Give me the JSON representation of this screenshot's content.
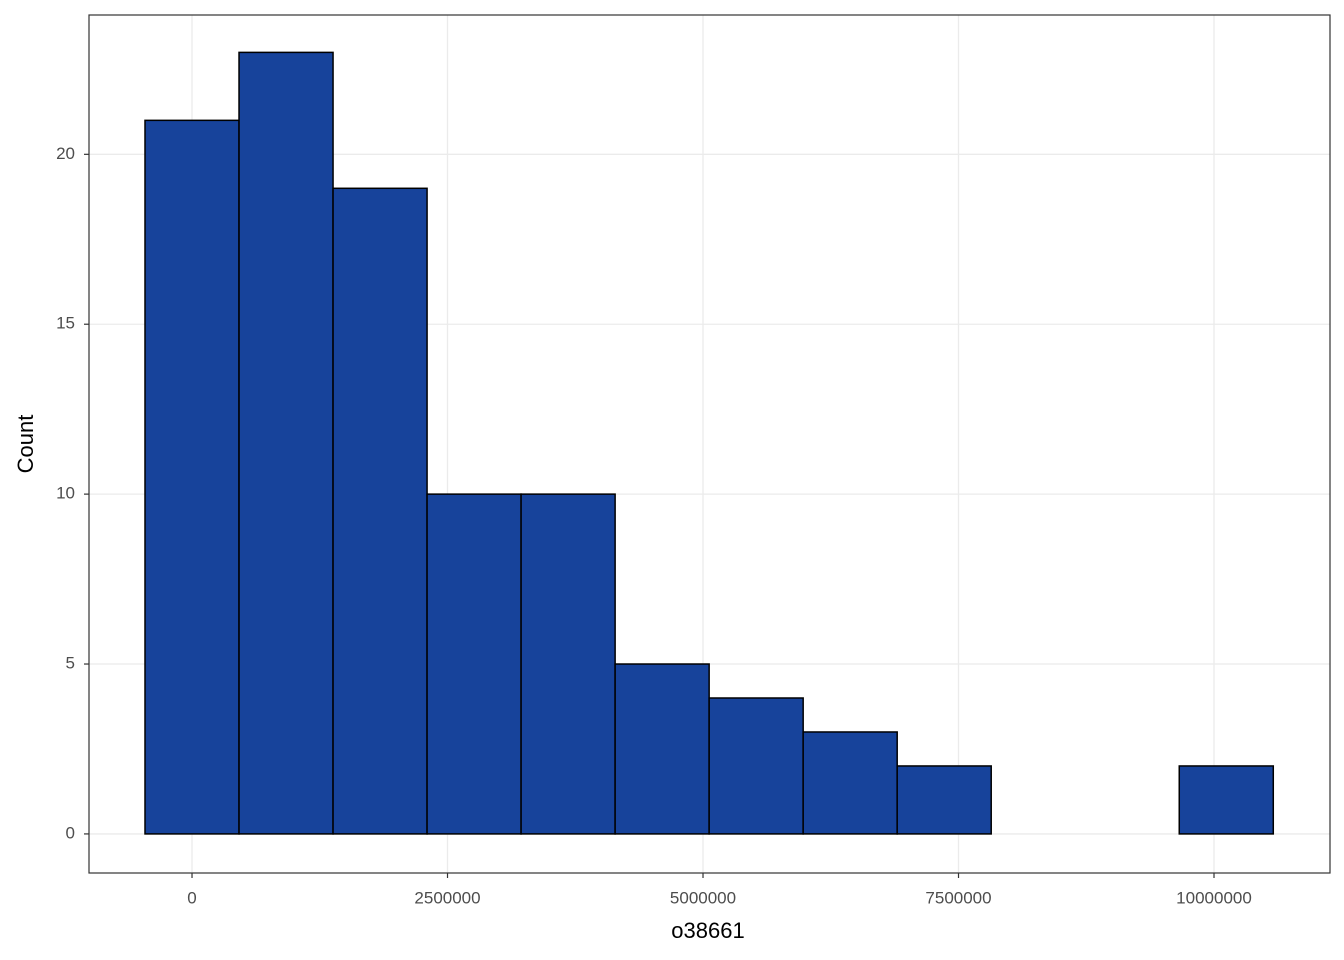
{
  "chart_data": {
    "type": "histogram",
    "x_label": "o38661",
    "y_label": "Count",
    "bins": [
      -460000,
      460000,
      1380000,
      2300000,
      3220000,
      4140000,
      5060000,
      5980000,
      6900000,
      7820000,
      8740000,
      9660000,
      10580000
    ],
    "values": [
      21,
      23,
      19,
      10,
      10,
      5,
      4,
      3,
      2,
      0,
      0,
      2
    ],
    "color": "#17439b",
    "xlim": [
      -1008000,
      11135000
    ],
    "ylim": [
      -1.15,
      24.1
    ],
    "xticks": [
      0,
      2500000,
      5000000,
      7500000,
      10000000
    ],
    "yticks": [
      0,
      5,
      10,
      15,
      20
    ],
    "grid": true
  }
}
